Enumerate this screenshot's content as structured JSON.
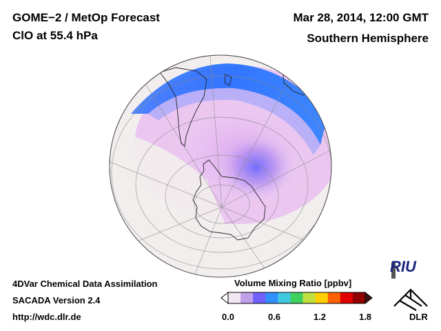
{
  "header": {
    "title_line1": "GOME−2 / MetOp Forecast",
    "title_line2": "ClO at 55.4 hPa",
    "date": "Mar 28, 2014, 12:00 GMT",
    "region": "Southern Hemisphere"
  },
  "footer": {
    "line1": "4DVar Chemical Data Assimilation",
    "line2": "SACADA Version 2.4",
    "line3": "http://wdc.dlr.de"
  },
  "colorbar": {
    "title": "Volume Mixing Ratio [ppbv]",
    "ticks": [
      "0.0",
      "0.6",
      "1.2",
      "1.8"
    ],
    "colors": [
      "#f3e6f3",
      "#c0a0e8",
      "#7060ff",
      "#3090ff",
      "#40c8e0",
      "#40d060",
      "#c0e040",
      "#ffd000",
      "#ff6000",
      "#e00000",
      "#900000"
    ]
  },
  "logos": {
    "riu": "RIU",
    "dlr": "DLR",
    "dlr_icon": "dlr-cross-icon"
  },
  "map": {
    "projection": "orthographic south pole",
    "land_fill": "#f2eeee",
    "high_value_color": "#2060ff",
    "mid_value_color": "#e0a8f0"
  }
}
